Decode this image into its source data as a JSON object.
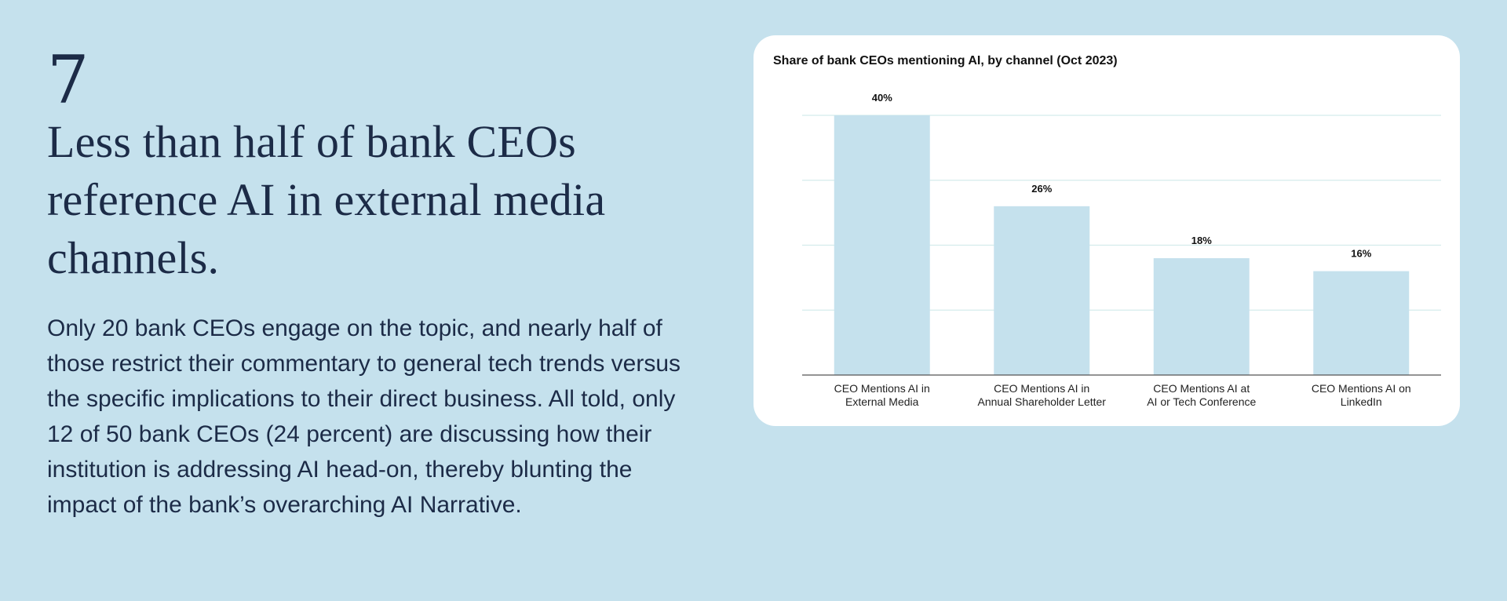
{
  "slide": {
    "number": "7",
    "headline": "Less than half of bank CEOs reference AI in external media channels.",
    "body": "Only 20 bank CEOs engage on the topic, and nearly half of those restrict their commentary to general tech trends versus the specific implications to their direct business. All told, only 12 of 50 bank CEOs (24 percent) are discussing how their institution is addressing AI head-on, thereby blunting the impact of the bank’s overarching AI Narrative."
  },
  "colors": {
    "background": "#c5e1ed",
    "bar": "#c5e1ed",
    "grid": "#d4ecec",
    "text": "#1c2b47"
  },
  "chart_data": {
    "type": "bar",
    "title": "Share of bank CEOs mentioning AI, by channel (Oct 2023)",
    "categories": [
      [
        "CEO Mentions AI in",
        "External Media"
      ],
      [
        "CEO Mentions AI in",
        "Annual Shareholder Letter"
      ],
      [
        "CEO Mentions AI at",
        "AI or Tech Conference"
      ],
      [
        "CEO Mentions AI on",
        "LinkedIn"
      ]
    ],
    "values": [
      40,
      26,
      18,
      16
    ],
    "value_labels": [
      "40%",
      "26%",
      "18%",
      "16%"
    ],
    "ylim": [
      0,
      40
    ],
    "gridlines": [
      10,
      20,
      30,
      40
    ],
    "grid": true,
    "xlabel": "",
    "ylabel": ""
  }
}
